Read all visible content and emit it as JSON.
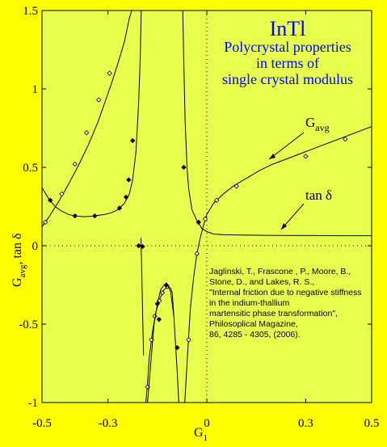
{
  "colors": {
    "background": "#ffff00",
    "plot_area": "#e6ff4d",
    "title": "#0000ff",
    "ink": "#000000"
  },
  "chart_data": {
    "type": "line",
    "title": "InTl",
    "subtitle_lines": [
      "Polycrystal properties",
      "in terms of",
      "single crystal modulus"
    ],
    "xlabel": "G",
    "xlabel_sub": "1",
    "ylabel": "G",
    "ylabel_sub": "avg",
    "ylabel_rest": ", tan δ",
    "xlim": [
      -0.5,
      0.5
    ],
    "ylim": [
      -1,
      1.5
    ],
    "x_ticks": [
      -0.5,
      -0.3,
      0,
      0.3,
      0.5
    ],
    "x_tick_labels": [
      "-0.5",
      "-0.3",
      "0",
      "0.3",
      "0.5"
    ],
    "y_ticks": [
      -1,
      -0.5,
      0,
      0.5,
      1,
      1.5
    ],
    "y_tick_labels": [
      "-1",
      "-0.5",
      "0",
      "0.5",
      "1",
      "1.5"
    ],
    "reference_lines": {
      "y": 0,
      "x": 0,
      "style": "dotted"
    },
    "annotations": [
      {
        "text": "G",
        "sub": "avg",
        "points_to": [
          0.19,
          0.52
        ]
      },
      {
        "text": "tan δ",
        "points_to": [
          0.22,
          0.1
        ]
      }
    ],
    "citation_lines": [
      "Jaglinski, T., Frascone , P., Moore, B.,",
      "Stone, D., and Lakes, R. S.,",
      "\"Internal friction  due to negative stiffness",
      "in the indium-thallium",
      "martensitic phase transformation\",",
      "Philosoplical Magazine,",
      " 86, 4285 - 4305, (2006)."
    ],
    "series": [
      {
        "name": "G avg",
        "marker": "open-diamond",
        "segments": [
          [
            [
              -0.5,
              0.12
            ],
            [
              -0.48,
              0.18
            ],
            [
              -0.45,
              0.28
            ],
            [
              -0.42,
              0.39
            ],
            [
              -0.39,
              0.51
            ],
            [
              -0.36,
              0.64
            ],
            [
              -0.33,
              0.79
            ],
            [
              -0.31,
              0.91
            ],
            [
              -0.29,
              1.03
            ],
            [
              -0.27,
              1.16
            ],
            [
              -0.25,
              1.3
            ],
            [
              -0.235,
              1.45
            ],
            [
              -0.228,
              1.5
            ]
          ],
          [
            [
              -0.185,
              -1.0
            ],
            [
              -0.18,
              -0.88
            ],
            [
              -0.175,
              -0.72
            ],
            [
              -0.165,
              -0.55
            ],
            [
              -0.155,
              -0.43
            ],
            [
              -0.145,
              -0.35
            ],
            [
              -0.13,
              -0.28
            ],
            [
              -0.12,
              -0.265
            ],
            [
              -0.11,
              -0.27
            ],
            [
              -0.105,
              -0.3
            ],
            [
              -0.1,
              -0.45
            ]
          ],
          [
            [
              -0.067,
              -1.0
            ],
            [
              -0.06,
              -0.75
            ],
            [
              -0.05,
              -0.4
            ],
            [
              -0.04,
              -0.2
            ],
            [
              -0.03,
              -0.05
            ],
            [
              -0.02,
              0.05
            ],
            [
              -0.01,
              0.13
            ],
            [
              0.0,
              0.2
            ],
            [
              0.02,
              0.27
            ],
            [
              0.05,
              0.33
            ],
            [
              0.08,
              0.38
            ],
            [
              0.12,
              0.43
            ],
            [
              0.16,
              0.48
            ],
            [
              0.2,
              0.52
            ],
            [
              0.25,
              0.56
            ],
            [
              0.3,
              0.6
            ],
            [
              0.35,
              0.64
            ],
            [
              0.4,
              0.68
            ],
            [
              0.45,
              0.72
            ],
            [
              0.5,
              0.76
            ]
          ]
        ],
        "marker_points": [
          [
            -0.49,
            0.15
          ],
          [
            -0.44,
            0.33
          ],
          [
            -0.4,
            0.52
          ],
          [
            -0.365,
            0.72
          ],
          [
            -0.328,
            0.93
          ],
          [
            -0.295,
            1.1
          ],
          [
            -0.18,
            -0.9
          ],
          [
            -0.168,
            -0.6
          ],
          [
            -0.158,
            -0.45
          ],
          [
            -0.144,
            -0.35
          ],
          [
            -0.135,
            -0.3
          ],
          [
            -0.12,
            -0.26
          ],
          [
            -0.055,
            -0.6
          ],
          [
            -0.03,
            -0.05
          ],
          [
            -0.005,
            0.17
          ],
          [
            0.03,
            0.29
          ],
          [
            0.09,
            0.38
          ],
          [
            0.3,
            0.57
          ],
          [
            0.42,
            0.68
          ]
        ]
      },
      {
        "name": "tan δ",
        "marker": "filled-diamond",
        "segments": [
          [
            [
              -0.5,
              0.37
            ],
            [
              -0.48,
              0.3
            ],
            [
              -0.46,
              0.25
            ],
            [
              -0.44,
              0.22
            ],
            [
              -0.42,
              0.2
            ],
            [
              -0.4,
              0.19
            ],
            [
              -0.37,
              0.185
            ],
            [
              -0.34,
              0.19
            ],
            [
              -0.31,
              0.2
            ],
            [
              -0.29,
              0.21
            ],
            [
              -0.27,
              0.23
            ],
            [
              -0.25,
              0.27
            ],
            [
              -0.235,
              0.33
            ],
            [
              -0.225,
              0.42
            ],
            [
              -0.215,
              0.6
            ],
            [
              -0.207,
              0.9
            ],
            [
              -0.202,
              1.2
            ],
            [
              -0.199,
              1.5
            ]
          ],
          [
            [
              -0.2,
              0.05
            ],
            [
              -0.198,
              -0.1
            ],
            [
              -0.195,
              -0.4
            ],
            [
              -0.192,
              -0.7
            ]
          ],
          [
            [
              -0.18,
              -1.0
            ],
            [
              -0.17,
              -0.75
            ],
            [
              -0.16,
              -0.5
            ],
            [
              -0.15,
              -0.37
            ],
            [
              -0.14,
              -0.28
            ],
            [
              -0.13,
              -0.25
            ],
            [
              -0.12,
              -0.25
            ],
            [
              -0.11,
              -0.29
            ],
            [
              -0.1,
              -0.45
            ],
            [
              -0.09,
              -0.8
            ],
            [
              -0.085,
              -1.0
            ]
          ],
          [
            [
              -0.073,
              1.5
            ],
            [
              -0.07,
              1.2
            ],
            [
              -0.066,
              0.8
            ],
            [
              -0.06,
              0.5
            ],
            [
              -0.055,
              0.36
            ],
            [
              -0.045,
              0.23
            ],
            [
              -0.03,
              0.16
            ],
            [
              -0.015,
              0.11
            ],
            [
              0.0,
              0.09
            ],
            [
              0.02,
              0.075
            ],
            [
              0.05,
              0.07
            ],
            [
              0.1,
              0.068
            ],
            [
              0.2,
              0.066
            ],
            [
              0.3,
              0.065
            ],
            [
              0.4,
              0.064
            ],
            [
              0.5,
              0.064
            ]
          ]
        ],
        "marker_points": [
          [
            -0.475,
            0.29
          ],
          [
            -0.4,
            0.19
          ],
          [
            -0.34,
            0.19
          ],
          [
            -0.265,
            0.24
          ],
          [
            -0.245,
            0.31
          ],
          [
            -0.237,
            0.42
          ],
          [
            -0.225,
            0.67
          ],
          [
            -0.207,
            0.0
          ],
          [
            -0.195,
            -0.005
          ],
          [
            -0.15,
            -0.37
          ],
          [
            -0.145,
            -0.47
          ],
          [
            -0.123,
            -0.25
          ],
          [
            -0.09,
            -0.65
          ],
          [
            -0.07,
            0.5
          ],
          [
            -0.025,
            0.15
          ]
        ]
      }
    ]
  }
}
